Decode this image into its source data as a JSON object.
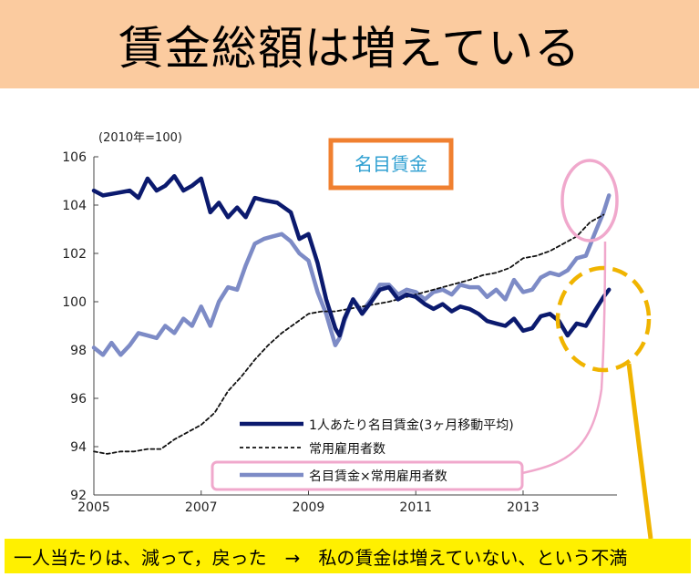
{
  "page": {
    "title": "賃金総額は増えている",
    "caption": "一人当たりは、減って，戻った　→　私の賃金は増えていない、という不満"
  },
  "chart_data": {
    "type": "line",
    "title": "名目賃金",
    "unit_note": "(2010年=100)",
    "xlabel": "",
    "ylabel": "",
    "xlim": [
      2005,
      2014.75
    ],
    "ylim": [
      92,
      106
    ],
    "x_ticks": [
      "2005",
      "2007",
      "2009",
      "2011",
      "2013"
    ],
    "y_ticks": [
      "106",
      "104",
      "102",
      "100",
      "98",
      "96",
      "94",
      "92"
    ],
    "legend": {
      "position": "bottom-center",
      "entries": [
        "1人あたり名目賃金(3ヶ月移動平均)",
        "常用雇用者数",
        "名目賃金×常用雇用者数"
      ]
    },
    "colors": {
      "per_capita": "#0b1a6e",
      "employees": "#111111",
      "total": "#7d8bc6",
      "highlight_pink": "#f0a8cc",
      "highlight_gold": "#f0b400",
      "title_box_border": "#f08030",
      "title_box_text": "#2e9fd1"
    },
    "series": [
      {
        "name": "1人あたり名目賃金(3ヶ月移動平均)",
        "style": "solid",
        "x": [
          2005.0,
          2005.17,
          2005.42,
          2005.67,
          2005.83,
          2006.0,
          2006.17,
          2006.33,
          2006.5,
          2006.67,
          2006.83,
          2007.0,
          2007.17,
          2007.33,
          2007.5,
          2007.67,
          2007.83,
          2008.0,
          2008.17,
          2008.42,
          2008.67,
          2008.83,
          2009.0,
          2009.17,
          2009.33,
          2009.5,
          2009.58,
          2009.67,
          2009.83,
          2010.0,
          2010.17,
          2010.33,
          2010.5,
          2010.67,
          2010.83,
          2011.0,
          2011.17,
          2011.33,
          2011.5,
          2011.67,
          2011.83,
          2012.0,
          2012.17,
          2012.33,
          2012.5,
          2012.67,
          2012.83,
          2013.0,
          2013.17,
          2013.33,
          2013.5,
          2013.67,
          2013.83,
          2014.0,
          2014.17,
          2014.33,
          2014.5,
          2014.6
        ],
        "values": [
          104.6,
          104.4,
          104.5,
          104.6,
          104.3,
          105.1,
          104.6,
          104.8,
          105.2,
          104.6,
          104.8,
          105.1,
          103.7,
          104.1,
          103.5,
          103.9,
          103.5,
          104.3,
          104.2,
          104.1,
          103.7,
          102.6,
          102.8,
          101.6,
          100.1,
          98.9,
          98.6,
          99.3,
          100.1,
          99.5,
          100.0,
          100.5,
          100.6,
          100.1,
          100.3,
          100.2,
          99.9,
          99.7,
          99.9,
          99.6,
          99.8,
          99.7,
          99.5,
          99.2,
          99.1,
          99.0,
          99.3,
          98.8,
          98.9,
          99.4,
          99.5,
          99.2,
          98.6,
          99.1,
          99.0,
          99.6,
          100.2,
          100.5
        ]
      },
      {
        "name": "常用雇用者数",
        "style": "dashed",
        "x": [
          2005.0,
          2005.25,
          2005.5,
          2005.75,
          2006.0,
          2006.25,
          2006.5,
          2006.75,
          2007.0,
          2007.25,
          2007.5,
          2007.75,
          2008.0,
          2008.25,
          2008.5,
          2008.75,
          2009.0,
          2009.25,
          2009.5,
          2009.75,
          2010.0,
          2010.5,
          2011.0,
          2011.5,
          2012.0,
          2012.25,
          2012.5,
          2012.75,
          2013.0,
          2013.25,
          2013.5,
          2013.75,
          2014.0,
          2014.25,
          2014.5
        ],
        "values": [
          93.8,
          93.7,
          93.8,
          93.8,
          93.9,
          93.9,
          94.3,
          94.6,
          94.9,
          95.4,
          96.3,
          96.9,
          97.6,
          98.2,
          98.7,
          99.1,
          99.5,
          99.6,
          99.6,
          99.7,
          99.8,
          100.0,
          100.3,
          100.6,
          100.9,
          101.1,
          101.2,
          101.4,
          101.8,
          101.9,
          102.1,
          102.4,
          102.7,
          103.3,
          103.6
        ]
      },
      {
        "name": "名目賃金×常用雇用者数",
        "style": "solid",
        "x": [
          2005.0,
          2005.17,
          2005.33,
          2005.5,
          2005.67,
          2005.83,
          2006.0,
          2006.17,
          2006.33,
          2006.5,
          2006.67,
          2006.83,
          2007.0,
          2007.17,
          2007.33,
          2007.5,
          2007.67,
          2007.83,
          2008.0,
          2008.17,
          2008.33,
          2008.5,
          2008.67,
          2008.83,
          2009.0,
          2009.17,
          2009.33,
          2009.5,
          2009.58,
          2009.67,
          2009.83,
          2010.0,
          2010.17,
          2010.33,
          2010.5,
          2010.67,
          2010.83,
          2011.0,
          2011.17,
          2011.33,
          2011.5,
          2011.67,
          2011.83,
          2012.0,
          2012.17,
          2012.33,
          2012.5,
          2012.67,
          2012.83,
          2013.0,
          2013.17,
          2013.33,
          2013.5,
          2013.67,
          2013.83,
          2014.0,
          2014.17,
          2014.33,
          2014.5,
          2014.6
        ],
        "values": [
          98.1,
          97.8,
          98.3,
          97.8,
          98.2,
          98.7,
          98.6,
          98.5,
          99.0,
          98.7,
          99.3,
          99.0,
          99.8,
          99.0,
          100.0,
          100.6,
          100.5,
          101.5,
          102.4,
          102.6,
          102.7,
          102.8,
          102.5,
          102.0,
          101.7,
          100.4,
          99.5,
          98.2,
          98.5,
          99.2,
          100.1,
          99.6,
          100.1,
          100.7,
          100.7,
          100.3,
          100.5,
          100.4,
          100.1,
          100.4,
          100.5,
          100.3,
          100.7,
          100.6,
          100.6,
          100.2,
          100.5,
          100.1,
          100.9,
          100.4,
          100.5,
          101.0,
          101.2,
          101.1,
          101.3,
          101.8,
          101.9,
          102.8,
          103.7,
          104.4
        ]
      }
    ]
  }
}
